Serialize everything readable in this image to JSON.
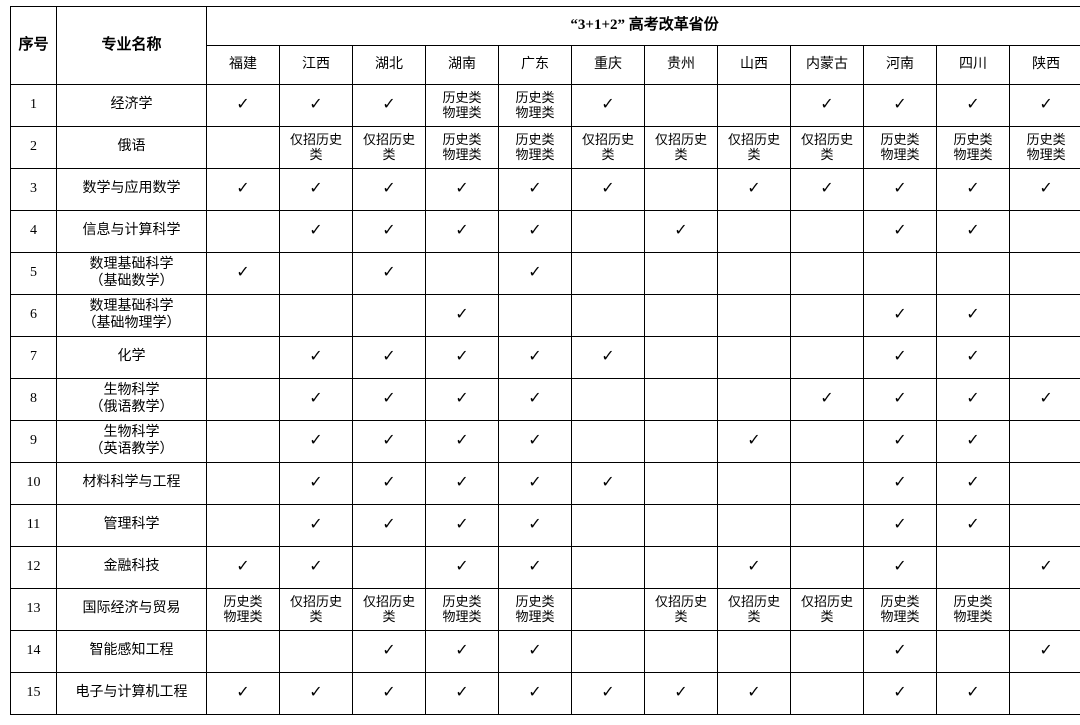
{
  "table": {
    "type": "table",
    "colors": {
      "border": "#000000",
      "background": "#ffffff",
      "text": "#000000"
    },
    "font": {
      "family": "SimSun",
      "header_size_pt": 11,
      "cell_size_pt": 10
    },
    "check_mark": "✓",
    "headers": {
      "index": "序号",
      "name": "专业名称",
      "group": "“3+1+2” 高考改革省份"
    },
    "provinces": [
      "福建",
      "江西",
      "湖北",
      "湖南",
      "广东",
      "重庆",
      "贵州",
      "山西",
      "内蒙古",
      "河南",
      "四川",
      "陕西"
    ],
    "rows": [
      {
        "idx": "1",
        "name": "经济学",
        "vals": [
          "✓",
          "✓",
          "✓",
          "历史类\n物理类",
          "历史类\n物理类",
          "✓",
          "",
          "",
          "✓",
          "✓",
          "✓",
          "✓"
        ]
      },
      {
        "idx": "2",
        "name": "俄语",
        "vals": [
          "",
          "仅招历史\n类",
          "仅招历史\n类",
          "历史类\n物理类",
          "历史类\n物理类",
          "仅招历史\n类",
          "仅招历史\n类",
          "仅招历史\n类",
          "仅招历史\n类",
          "历史类\n物理类",
          "历史类\n物理类",
          "历史类\n物理类"
        ]
      },
      {
        "idx": "3",
        "name": "数学与应用数学",
        "vals": [
          "✓",
          "✓",
          "✓",
          "✓",
          "✓",
          "✓",
          "",
          "✓",
          "✓",
          "✓",
          "✓",
          "✓"
        ]
      },
      {
        "idx": "4",
        "name": "信息与计算科学",
        "vals": [
          "",
          "✓",
          "✓",
          "✓",
          "✓",
          "",
          "✓",
          "",
          "",
          "✓",
          "✓",
          ""
        ]
      },
      {
        "idx": "5",
        "name": "数理基础科学\n（基础数学）",
        "vals": [
          "✓",
          "",
          "✓",
          "",
          "✓",
          "",
          "",
          "",
          "",
          "",
          "",
          ""
        ]
      },
      {
        "idx": "6",
        "name": "数理基础科学\n（基础物理学）",
        "vals": [
          "",
          "",
          "",
          "✓",
          "",
          "",
          "",
          "",
          "",
          "✓",
          "✓",
          ""
        ]
      },
      {
        "idx": "7",
        "name": "化学",
        "vals": [
          "",
          "✓",
          "✓",
          "✓",
          "✓",
          "✓",
          "",
          "",
          "",
          "✓",
          "✓",
          ""
        ]
      },
      {
        "idx": "8",
        "name": "生物科学\n（俄语教学）",
        "vals": [
          "",
          "✓",
          "✓",
          "✓",
          "✓",
          "",
          "",
          "",
          "✓",
          "✓",
          "✓",
          "✓"
        ]
      },
      {
        "idx": "9",
        "name": "生物科学\n（英语教学）",
        "vals": [
          "",
          "✓",
          "✓",
          "✓",
          "✓",
          "",
          "",
          "✓",
          "",
          "✓",
          "✓",
          ""
        ]
      },
      {
        "idx": "10",
        "name": "材料科学与工程",
        "vals": [
          "",
          "✓",
          "✓",
          "✓",
          "✓",
          "✓",
          "",
          "",
          "",
          "✓",
          "✓",
          ""
        ]
      },
      {
        "idx": "11",
        "name": "管理科学",
        "vals": [
          "",
          "✓",
          "✓",
          "✓",
          "✓",
          "",
          "",
          "",
          "",
          "✓",
          "✓",
          ""
        ]
      },
      {
        "idx": "12",
        "name": "金融科技",
        "vals": [
          "✓",
          "✓",
          "",
          "✓",
          "✓",
          "",
          "",
          "✓",
          "",
          "✓",
          "",
          "✓"
        ]
      },
      {
        "idx": "13",
        "name": "国际经济与贸易",
        "vals": [
          "历史类\n物理类",
          "仅招历史\n类",
          "仅招历史\n类",
          "历史类\n物理类",
          "历史类\n物理类",
          "",
          "仅招历史\n类",
          "仅招历史\n类",
          "仅招历史\n类",
          "历史类\n物理类",
          "历史类\n物理类",
          ""
        ]
      },
      {
        "idx": "14",
        "name": "智能感知工程",
        "vals": [
          "",
          "",
          "✓",
          "✓",
          "✓",
          "",
          "",
          "",
          "",
          "✓",
          "",
          "✓"
        ]
      },
      {
        "idx": "15",
        "name": "电子与计算机工程",
        "vals": [
          "✓",
          "✓",
          "✓",
          "✓",
          "✓",
          "✓",
          "✓",
          "✓",
          "",
          "✓",
          "✓",
          ""
        ]
      }
    ]
  }
}
